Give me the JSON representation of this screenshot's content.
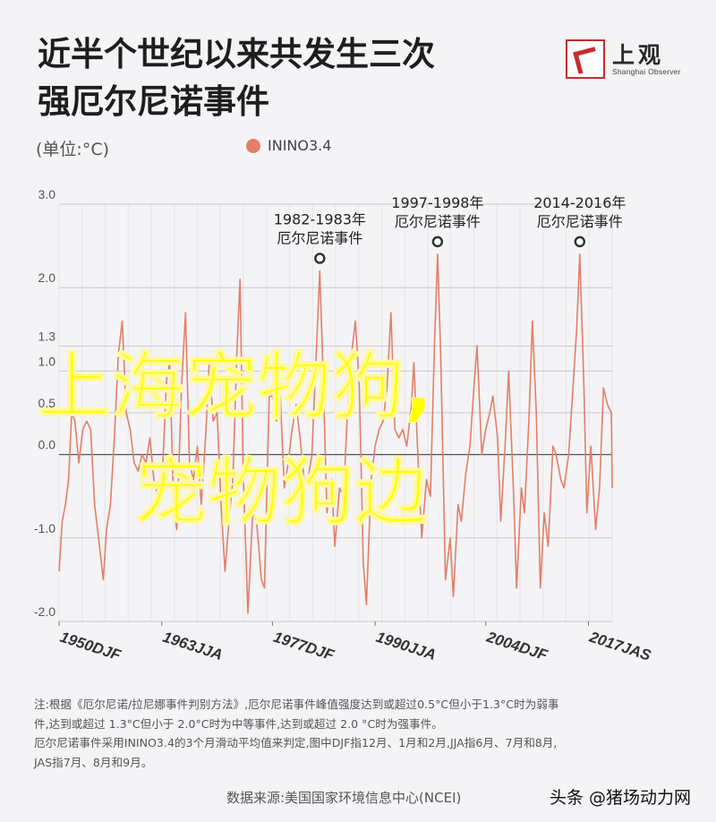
{
  "header": {
    "title_line1": "近半个世纪以来共发生三次",
    "title_line2": "强厄尔尼诺事件"
  },
  "logo": {
    "cn": "上观",
    "en": "Shanghai Observer"
  },
  "unit_label": "(单位:°C)",
  "legend": {
    "label": "ININO3.4",
    "color": "#e37f68"
  },
  "chart_data": {
    "type": "line",
    "title": "近半个世纪以来共发生三次强厄尔尼诺事件",
    "ylabel": "(单位:°C)",
    "ylim": [
      -2.0,
      3.0
    ],
    "yticks": [
      {
        "value": 3.0,
        "label": "3.0"
      },
      {
        "value": 2.0,
        "label": "2.0"
      },
      {
        "value": 1.3,
        "label": "1.3"
      },
      {
        "value": 1.0,
        "label": "1.0"
      },
      {
        "value": 0.5,
        "label": "0.5"
      },
      {
        "value": 0.0,
        "label": "0.0"
      },
      {
        "value": -1.0,
        "label": "-1.0"
      },
      {
        "value": -2.0,
        "label": "-2.0"
      }
    ],
    "xlim": [
      1950,
      2020
    ],
    "xticks": [
      {
        "value": 1950,
        "label": "1950DJF"
      },
      {
        "value": 1963,
        "label": "1963JJA"
      },
      {
        "value": 1977,
        "label": "1977DJF"
      },
      {
        "value": 1990,
        "label": "1990JJA"
      },
      {
        "value": 2004,
        "label": "2004DJF"
      },
      {
        "value": 2017,
        "label": "2017JAS"
      }
    ],
    "grid": "horizontal",
    "series": [
      {
        "name": "ININO3.4",
        "color": "#e37f68",
        "points": [
          [
            1950.0,
            -1.4
          ],
          [
            1950.4,
            -0.8
          ],
          [
            1950.8,
            -0.6
          ],
          [
            1951.2,
            -0.3
          ],
          [
            1951.6,
            0.5
          ],
          [
            1952.0,
            0.4
          ],
          [
            1952.5,
            -0.1
          ],
          [
            1953.0,
            0.3
          ],
          [
            1953.5,
            0.4
          ],
          [
            1954.0,
            0.3
          ],
          [
            1954.5,
            -0.6
          ],
          [
            1955.0,
            -1.0
          ],
          [
            1955.6,
            -1.5
          ],
          [
            1956.0,
            -0.9
          ],
          [
            1956.5,
            -0.6
          ],
          [
            1957.0,
            0.2
          ],
          [
            1957.5,
            1.2
          ],
          [
            1958.0,
            1.6
          ],
          [
            1958.5,
            0.5
          ],
          [
            1959.0,
            0.3
          ],
          [
            1959.5,
            -0.1
          ],
          [
            1960.0,
            -0.2
          ],
          [
            1960.5,
            0.0
          ],
          [
            1961.0,
            -0.1
          ],
          [
            1961.5,
            0.2
          ],
          [
            1962.0,
            -0.3
          ],
          [
            1962.5,
            -0.5
          ],
          [
            1963.0,
            -0.4
          ],
          [
            1963.6,
            0.9
          ],
          [
            1964.0,
            1.1
          ],
          [
            1964.5,
            -0.6
          ],
          [
            1964.9,
            -0.9
          ],
          [
            1965.5,
            0.8
          ],
          [
            1966.0,
            1.7
          ],
          [
            1966.5,
            -0.1
          ],
          [
            1967.0,
            -0.3
          ],
          [
            1967.5,
            0.1
          ],
          [
            1968.0,
            -0.6
          ],
          [
            1968.6,
            0.3
          ],
          [
            1969.0,
            1.1
          ],
          [
            1969.5,
            0.4
          ],
          [
            1970.0,
            0.5
          ],
          [
            1970.5,
            -0.6
          ],
          [
            1971.0,
            -1.4
          ],
          [
            1971.5,
            -0.8
          ],
          [
            1972.0,
            -0.3
          ],
          [
            1972.5,
            1.2
          ],
          [
            1972.9,
            2.1
          ],
          [
            1973.3,
            -0.2
          ],
          [
            1973.9,
            -1.9
          ],
          [
            1974.5,
            -0.7
          ],
          [
            1975.0,
            -0.8
          ],
          [
            1975.6,
            -1.5
          ],
          [
            1976.0,
            -1.6
          ],
          [
            1976.6,
            0.7
          ],
          [
            1977.0,
            0.7
          ],
          [
            1977.5,
            0.4
          ],
          [
            1978.0,
            0.7
          ],
          [
            1978.5,
            -0.4
          ],
          [
            1979.0,
            -0.1
          ],
          [
            1979.5,
            0.3
          ],
          [
            1980.0,
            0.6
          ],
          [
            1980.5,
            0.2
          ],
          [
            1981.0,
            -0.3
          ],
          [
            1981.5,
            -0.3
          ],
          [
            1982.0,
            0.0
          ],
          [
            1982.5,
            1.1
          ],
          [
            1983.0,
            2.2
          ],
          [
            1983.4,
            1.0
          ],
          [
            1983.9,
            -0.7
          ],
          [
            1984.5,
            -0.3
          ],
          [
            1984.9,
            -1.1
          ],
          [
            1985.5,
            -0.4
          ],
          [
            1986.0,
            -0.5
          ],
          [
            1986.5,
            0.5
          ],
          [
            1987.0,
            1.2
          ],
          [
            1987.5,
            1.6
          ],
          [
            1988.0,
            0.8
          ],
          [
            1988.5,
            -1.3
          ],
          [
            1988.9,
            -1.8
          ],
          [
            1989.5,
            -0.3
          ],
          [
            1990.0,
            0.1
          ],
          [
            1990.5,
            0.3
          ],
          [
            1991.0,
            0.4
          ],
          [
            1991.5,
            0.8
          ],
          [
            1992.0,
            1.7
          ],
          [
            1992.5,
            0.3
          ],
          [
            1993.0,
            0.2
          ],
          [
            1993.5,
            0.3
          ],
          [
            1994.0,
            0.1
          ],
          [
            1994.6,
            0.6
          ],
          [
            1994.9,
            1.1
          ],
          [
            1995.5,
            -0.2
          ],
          [
            1995.9,
            -1.0
          ],
          [
            1996.5,
            -0.3
          ],
          [
            1997.0,
            -0.5
          ],
          [
            1997.5,
            1.3
          ],
          [
            1997.9,
            2.4
          ],
          [
            1998.3,
            1.2
          ],
          [
            1998.9,
            -1.5
          ],
          [
            1999.5,
            -1.0
          ],
          [
            1999.9,
            -1.7
          ],
          [
            2000.5,
            -0.6
          ],
          [
            2000.9,
            -0.8
          ],
          [
            2001.5,
            -0.2
          ],
          [
            2002.0,
            0.1
          ],
          [
            2002.5,
            0.8
          ],
          [
            2002.9,
            1.3
          ],
          [
            2003.5,
            0.0
          ],
          [
            2004.0,
            0.3
          ],
          [
            2004.5,
            0.5
          ],
          [
            2004.9,
            0.7
          ],
          [
            2005.5,
            0.2
          ],
          [
            2005.9,
            -0.8
          ],
          [
            2006.5,
            0.2
          ],
          [
            2006.9,
            1.0
          ],
          [
            2007.5,
            -0.4
          ],
          [
            2007.9,
            -1.6
          ],
          [
            2008.5,
            -0.4
          ],
          [
            2008.9,
            -0.7
          ],
          [
            2009.5,
            0.5
          ],
          [
            2009.9,
            1.6
          ],
          [
            2010.4,
            0.5
          ],
          [
            2010.9,
            -1.6
          ],
          [
            2011.4,
            -0.7
          ],
          [
            2011.9,
            -1.1
          ],
          [
            2012.5,
            0.1
          ],
          [
            2012.9,
            0.0
          ],
          [
            2013.5,
            -0.3
          ],
          [
            2013.9,
            -0.4
          ],
          [
            2014.5,
            0.0
          ],
          [
            2014.9,
            0.6
          ],
          [
            2015.5,
            1.5
          ],
          [
            2015.9,
            2.4
          ],
          [
            2016.4,
            0.9
          ],
          [
            2016.8,
            -0.7
          ],
          [
            2017.3,
            0.1
          ],
          [
            2017.9,
            -0.9
          ],
          [
            2018.4,
            -0.4
          ],
          [
            2018.9,
            0.8
          ],
          [
            2019.4,
            0.6
          ],
          [
            2019.9,
            0.5
          ],
          [
            2020.0,
            -0.4
          ]
        ]
      }
    ],
    "annotations": [
      {
        "line1": "1982-1983年",
        "line2": "厄尔尼诺事件",
        "x": 1983.0,
        "y": 2.2
      },
      {
        "line1": "1997-1998年",
        "line2": "厄尔尼诺事件",
        "x": 1997.9,
        "y": 2.4
      },
      {
        "line1": "2014-2016年",
        "line2": "厄尔尼诺事件",
        "x": 2015.9,
        "y": 2.4
      }
    ]
  },
  "notes": {
    "line1": "注:根据《厄尔尼诺/拉尼娜事件判别方法》,厄尔尼诺事件峰值强度达到或超过0.5°C但小于1.3°C时为弱事",
    "line2": "件,达到或超过 1.3°C但小于 2.0°C时为中等事件,达到或超过 2.0 °C时为强事件。",
    "line3": "厄尔尼诺事件采用ININO3.4的3个月滑动平均值来判定,图中DJF指12月、1月和2月,JJA指6月、7月和8月,",
    "line4": "JAS指7月、8月和9月。"
  },
  "source": "数据来源:美国国家环境信息中心(NCEI)",
  "credit": "头条 @猪场动力网",
  "watermark": {
    "line1": "上海宠物狗,",
    "line2": "宠物狗边",
    "color": "#ffff00"
  }
}
